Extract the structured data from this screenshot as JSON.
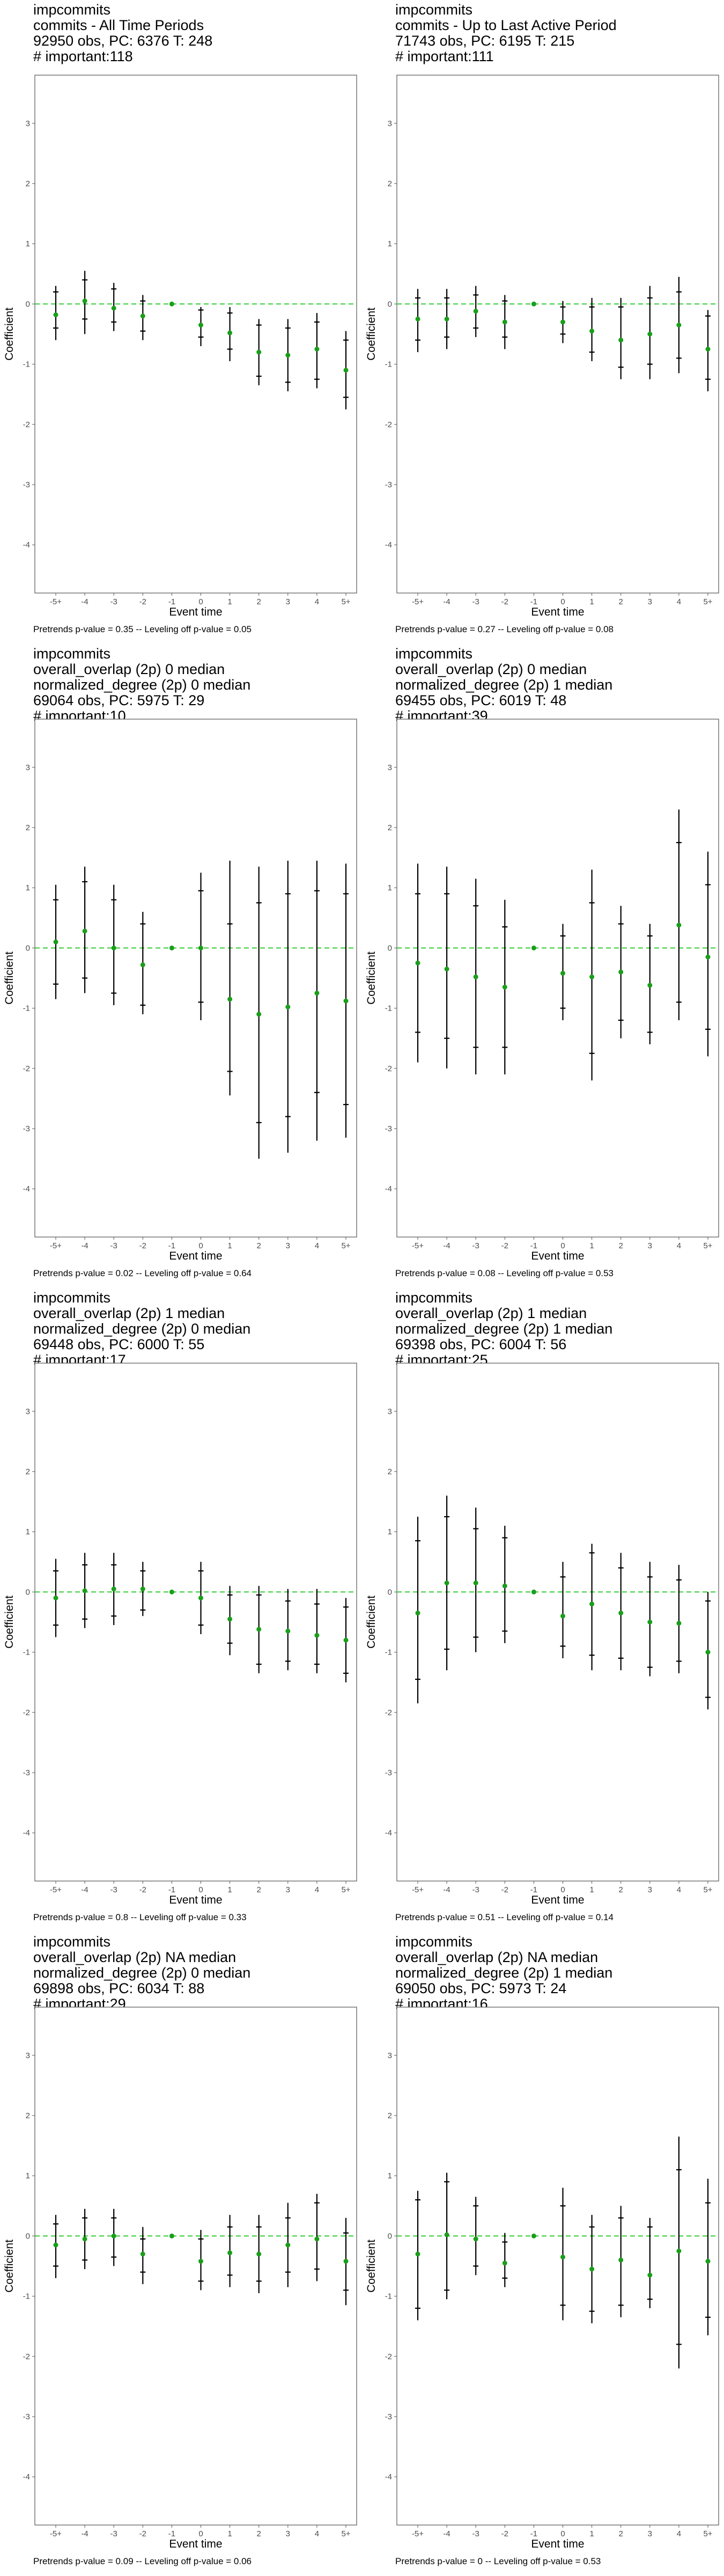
{
  "x_categories": [
    "-5+",
    "-4",
    "-3",
    "-2",
    "-1",
    "0",
    "1",
    "2",
    "3",
    "4",
    "5+"
  ],
  "colors": {
    "point": "#1a9e1a",
    "reference_line": "#33cc33",
    "error_bar": "#000000"
  },
  "chart_data": [
    {
      "type": "scatter",
      "title_lines": [
        "impcommits",
        "commits - All Time Periods",
        "92950 obs, PC: 6376 T: 248",
        "# important:118"
      ],
      "xlabel": "Event time",
      "ylabel": "Coefficient",
      "ylim": [
        -4.8,
        3.8
      ],
      "yticks": [
        -4,
        -3,
        -2,
        -1,
        0,
        1,
        2,
        3
      ],
      "grid": false,
      "reference_line_y": 0,
      "categories": [
        "-5+",
        "-4",
        "-3",
        "-2",
        "-1",
        "0",
        "1",
        "2",
        "3",
        "4",
        "5+"
      ],
      "values": [
        -0.18,
        0.05,
        -0.07,
        -0.2,
        0,
        -0.35,
        -0.48,
        -0.8,
        -0.85,
        -0.75,
        -1.1
      ],
      "ci_low": [
        -0.6,
        -0.5,
        -0.45,
        -0.6,
        0,
        -0.7,
        -0.95,
        -1.35,
        -1.45,
        -1.4,
        -1.75
      ],
      "ci_high": [
        0.3,
        0.55,
        0.35,
        0.15,
        0,
        -0.05,
        -0.05,
        -0.25,
        -0.25,
        -0.15,
        -0.45
      ],
      "inner_low": [
        -0.4,
        -0.25,
        -0.3,
        -0.45,
        0,
        -0.55,
        -0.75,
        -1.2,
        -1.3,
        -1.25,
        -1.55
      ],
      "inner_high": [
        0.2,
        0.4,
        0.25,
        0.05,
        0,
        -0.1,
        -0.15,
        -0.35,
        -0.4,
        -0.3,
        -0.6
      ],
      "footer": "Pretrends p-value = 0.35 -- Leveling off p-value = 0.05"
    },
    {
      "type": "scatter",
      "title_lines": [
        "impcommits",
        "commits - Up to Last Active Period",
        "71743 obs, PC: 6195 T: 215",
        "# important:111"
      ],
      "xlabel": "Event time",
      "ylabel": "Coefficient",
      "ylim": [
        -4.8,
        3.8
      ],
      "yticks": [
        -4,
        -3,
        -2,
        -1,
        0,
        1,
        2,
        3
      ],
      "grid": false,
      "reference_line_y": 0,
      "categories": [
        "-5+",
        "-4",
        "-3",
        "-2",
        "-1",
        "0",
        "1",
        "2",
        "3",
        "4",
        "5+"
      ],
      "values": [
        -0.25,
        -0.25,
        -0.12,
        -0.3,
        0,
        -0.3,
        -0.45,
        -0.6,
        -0.5,
        -0.35,
        -0.75
      ],
      "ci_low": [
        -0.8,
        -0.75,
        -0.55,
        -0.75,
        0,
        -0.65,
        -0.95,
        -1.25,
        -1.25,
        -1.15,
        -1.45
      ],
      "ci_high": [
        0.25,
        0.25,
        0.3,
        0.15,
        0,
        0.05,
        0.1,
        0.1,
        0.3,
        0.45,
        -0.1
      ],
      "inner_low": [
        -0.6,
        -0.55,
        -0.4,
        -0.55,
        0,
        -0.5,
        -0.8,
        -1.05,
        -1.0,
        -0.9,
        -1.25
      ],
      "inner_high": [
        0.1,
        0.1,
        0.15,
        0.05,
        0,
        -0.05,
        -0.05,
        -0.05,
        0.1,
        0.2,
        -0.2
      ],
      "footer": "Pretrends p-value = 0.27 -- Leveling off p-value = 0.08"
    },
    {
      "type": "scatter",
      "title_lines": [
        "impcommits",
        "overall_overlap (2p) 0 median",
        "normalized_degree (2p) 0 median",
        "69064 obs, PC: 5975 T: 29",
        "# important:10"
      ],
      "xlabel": "Event time",
      "ylabel": "Coefficient",
      "ylim": [
        -4.8,
        3.8
      ],
      "yticks": [
        -4,
        -3,
        -2,
        -1,
        0,
        1,
        2,
        3
      ],
      "grid": false,
      "reference_line_y": 0,
      "categories": [
        "-5+",
        "-4",
        "-3",
        "-2",
        "-1",
        "0",
        "1",
        "2",
        "3",
        "4",
        "5+"
      ],
      "values": [
        0.1,
        0.28,
        0.0,
        -0.28,
        0,
        0.0,
        -0.85,
        -1.1,
        -0.98,
        -0.75,
        -0.88
      ],
      "ci_low": [
        -0.85,
        -0.75,
        -0.95,
        -1.1,
        0,
        -1.2,
        -2.45,
        -3.5,
        -3.4,
        -3.2,
        -3.15
      ],
      "ci_high": [
        1.05,
        1.35,
        1.05,
        0.6,
        0,
        1.25,
        1.45,
        1.35,
        1.45,
        1.45,
        1.4
      ],
      "inner_low": [
        -0.6,
        -0.5,
        -0.75,
        -0.95,
        0,
        -0.9,
        -2.05,
        -2.9,
        -2.8,
        -2.4,
        -2.6
      ],
      "inner_high": [
        0.8,
        1.1,
        0.8,
        0.4,
        0,
        0.95,
        0.4,
        0.75,
        0.9,
        0.95,
        0.9
      ],
      "footer": "Pretrends p-value = 0.02 -- Leveling off p-value = 0.64"
    },
    {
      "type": "scatter",
      "title_lines": [
        "impcommits",
        "overall_overlap (2p) 0 median",
        "normalized_degree (2p) 1 median",
        "69455 obs, PC: 6019 T: 48",
        "# important:39"
      ],
      "xlabel": "Event time",
      "ylabel": "Coefficient",
      "ylim": [
        -4.8,
        3.8
      ],
      "yticks": [
        -4,
        -3,
        -2,
        -1,
        0,
        1,
        2,
        3
      ],
      "grid": false,
      "reference_line_y": 0,
      "categories": [
        "-5+",
        "-4",
        "-3",
        "-2",
        "-1",
        "0",
        "1",
        "2",
        "3",
        "4",
        "5+"
      ],
      "values": [
        -0.25,
        -0.35,
        -0.48,
        -0.65,
        0,
        -0.42,
        -0.48,
        -0.4,
        -0.62,
        0.38,
        -0.15
      ],
      "ci_low": [
        -1.9,
        -2.0,
        -2.1,
        -2.1,
        0,
        -1.2,
        -2.2,
        -1.5,
        -1.6,
        -1.2,
        -1.8
      ],
      "ci_high": [
        1.4,
        1.35,
        1.15,
        0.8,
        0,
        0.4,
        1.3,
        0.7,
        0.4,
        2.3,
        1.6
      ],
      "inner_low": [
        -1.4,
        -1.5,
        -1.65,
        -1.65,
        0,
        -1.0,
        -1.75,
        -1.2,
        -1.4,
        -0.9,
        -1.35
      ],
      "inner_high": [
        0.9,
        0.9,
        0.7,
        0.35,
        0,
        0.2,
        0.75,
        0.4,
        0.2,
        1.75,
        1.05
      ],
      "footer": "Pretrends p-value = 0.08 -- Leveling off p-value = 0.53"
    },
    {
      "type": "scatter",
      "title_lines": [
        "impcommits",
        "overall_overlap (2p) 1 median",
        "normalized_degree (2p) 0 median",
        "69448 obs, PC: 6000 T: 55",
        "# important:17"
      ],
      "xlabel": "Event time",
      "ylabel": "Coefficient",
      "ylim": [
        -4.8,
        3.8
      ],
      "yticks": [
        -4,
        -3,
        -2,
        -1,
        0,
        1,
        2,
        3
      ],
      "grid": false,
      "reference_line_y": 0,
      "categories": [
        "-5+",
        "-4",
        "-3",
        "-2",
        "-1",
        "0",
        "1",
        "2",
        "3",
        "4",
        "5+"
      ],
      "values": [
        -0.1,
        0.02,
        0.05,
        0.05,
        0,
        -0.1,
        -0.45,
        -0.62,
        -0.65,
        -0.72,
        -0.8
      ],
      "ci_low": [
        -0.75,
        -0.6,
        -0.55,
        -0.4,
        0,
        -0.7,
        -1.05,
        -1.35,
        -1.3,
        -1.35,
        -1.5
      ],
      "ci_high": [
        0.55,
        0.65,
        0.65,
        0.5,
        0,
        0.5,
        0.1,
        0.1,
        0.05,
        0.05,
        -0.1
      ],
      "inner_low": [
        -0.55,
        -0.45,
        -0.4,
        -0.3,
        0,
        -0.55,
        -0.85,
        -1.2,
        -1.15,
        -1.2,
        -1.35
      ],
      "inner_high": [
        0.35,
        0.45,
        0.45,
        0.35,
        0,
        0.35,
        -0.05,
        -0.05,
        -0.15,
        -0.2,
        -0.25
      ],
      "footer": "Pretrends p-value = 0.8 -- Leveling off p-value = 0.33"
    },
    {
      "type": "scatter",
      "title_lines": [
        "impcommits",
        "overall_overlap (2p) 1 median",
        "normalized_degree (2p) 1 median",
        "69398 obs, PC: 6004 T: 56",
        "# important:25"
      ],
      "xlabel": "Event time",
      "ylabel": "Coefficient",
      "ylim": [
        -4.8,
        3.8
      ],
      "yticks": [
        -4,
        -3,
        -2,
        -1,
        0,
        1,
        2,
        3
      ],
      "grid": false,
      "reference_line_y": 0,
      "categories": [
        "-5+",
        "-4",
        "-3",
        "-2",
        "-1",
        "0",
        "1",
        "2",
        "3",
        "4",
        "5+"
      ],
      "values": [
        -0.35,
        0.15,
        0.15,
        0.1,
        0,
        -0.4,
        -0.2,
        -0.35,
        -0.5,
        -0.52,
        -1.0
      ],
      "ci_low": [
        -1.85,
        -1.3,
        -1.0,
        -0.85,
        0,
        -1.1,
        -1.3,
        -1.3,
        -1.4,
        -1.35,
        -1.95
      ],
      "ci_high": [
        1.25,
        1.6,
        1.4,
        1.1,
        0,
        0.5,
        0.8,
        0.65,
        0.5,
        0.45,
        0.0
      ],
      "inner_low": [
        -1.45,
        -0.95,
        -0.75,
        -0.65,
        0,
        -0.9,
        -1.05,
        -1.1,
        -1.25,
        -1.15,
        -1.75
      ],
      "inner_high": [
        0.85,
        1.25,
        1.05,
        0.9,
        0,
        0.25,
        0.65,
        0.4,
        0.25,
        0.2,
        -0.15
      ],
      "footer": "Pretrends p-value = 0.51 -- Leveling off p-value = 0.14"
    },
    {
      "type": "scatter",
      "title_lines": [
        "impcommits",
        "overall_overlap (2p) NA median",
        "normalized_degree (2p) 0 median",
        "69898 obs, PC: 6034 T: 88",
        "# important:29"
      ],
      "xlabel": "Event time",
      "ylabel": "Coefficient",
      "ylim": [
        -4.8,
        3.8
      ],
      "yticks": [
        -4,
        -3,
        -2,
        -1,
        0,
        1,
        2,
        3
      ],
      "grid": false,
      "reference_line_y": 0,
      "categories": [
        "-5+",
        "-4",
        "-3",
        "-2",
        "-1",
        "0",
        "1",
        "2",
        "3",
        "4",
        "5+"
      ],
      "values": [
        -0.15,
        -0.05,
        0.0,
        -0.3,
        0,
        -0.42,
        -0.28,
        -0.3,
        -0.15,
        -0.05,
        -0.42
      ],
      "ci_low": [
        -0.7,
        -0.55,
        -0.5,
        -0.8,
        0,
        -0.9,
        -0.85,
        -0.95,
        -0.85,
        -0.75,
        -1.15
      ],
      "ci_high": [
        0.35,
        0.45,
        0.45,
        0.15,
        0,
        0.1,
        0.35,
        0.35,
        0.55,
        0.7,
        0.3
      ],
      "inner_low": [
        -0.5,
        -0.4,
        -0.35,
        -0.6,
        0,
        -0.75,
        -0.65,
        -0.75,
        -0.6,
        -0.55,
        -0.9
      ],
      "inner_high": [
        0.2,
        0.3,
        0.3,
        -0.05,
        0,
        -0.05,
        0.15,
        0.15,
        0.3,
        0.55,
        0.05
      ],
      "footer": "Pretrends p-value = 0.09 -- Leveling off p-value = 0.06"
    },
    {
      "type": "scatter",
      "title_lines": [
        "impcommits",
        "overall_overlap (2p) NA median",
        "normalized_degree (2p) 1 median",
        "69050 obs, PC: 5973 T: 24",
        "# important:16"
      ],
      "xlabel": "Event time",
      "ylabel": "Coefficient",
      "ylim": [
        -4.8,
        3.8
      ],
      "yticks": [
        -4,
        -3,
        -2,
        -1,
        0,
        1,
        2,
        3
      ],
      "grid": false,
      "reference_line_y": 0,
      "categories": [
        "-5+",
        "-4",
        "-3",
        "-2",
        "-1",
        "0",
        "1",
        "2",
        "3",
        "4",
        "5+"
      ],
      "values": [
        -0.3,
        0.02,
        -0.05,
        -0.45,
        0,
        -0.35,
        -0.55,
        -0.4,
        -0.65,
        -0.25,
        -0.42
      ],
      "ci_low": [
        -1.4,
        -1.05,
        -0.65,
        -0.85,
        0,
        -1.4,
        -1.45,
        -1.35,
        -1.2,
        -2.2,
        -1.65
      ],
      "ci_high": [
        0.75,
        1.05,
        0.65,
        0.05,
        0,
        0.8,
        0.35,
        0.5,
        0.3,
        1.65,
        0.95
      ],
      "inner_low": [
        -1.2,
        -0.9,
        -0.5,
        -0.7,
        0,
        -1.15,
        -1.25,
        -1.15,
        -1.05,
        -1.8,
        -1.35
      ],
      "inner_high": [
        0.6,
        0.9,
        0.5,
        -0.1,
        0,
        0.5,
        0.15,
        0.3,
        0.15,
        1.1,
        0.55
      ],
      "footer": "Pretrends p-value = 0 -- Leveling off p-value = 0.53"
    }
  ]
}
